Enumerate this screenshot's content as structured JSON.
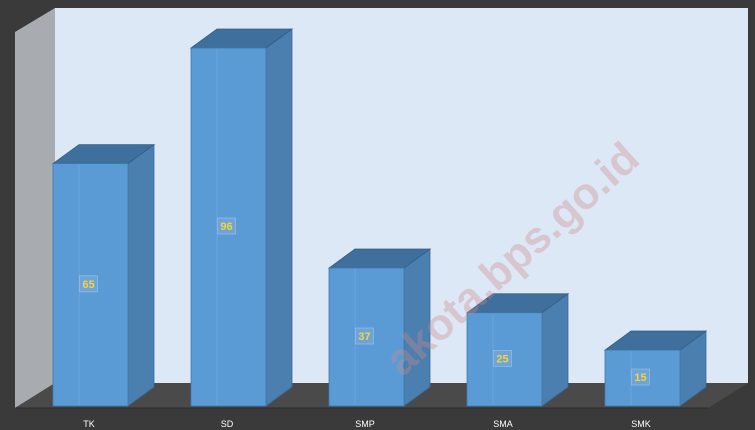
{
  "watermark": "akota.bps.go.id",
  "colors": {
    "frame": "#3a3a3a",
    "back_wall": "#dde8f6",
    "side_wall": "#a8acb1",
    "floor": "#4a4a4a",
    "bar_front": "#5b9bd5",
    "bar_side": "#4a7fb0",
    "bar_top": "#3f6f9c",
    "label_text": "#f6d23c"
  },
  "chart_data": {
    "type": "bar",
    "style": "3d-column",
    "categories": [
      "TK",
      "SD",
      "SMP",
      "SMA",
      "SMK"
    ],
    "values": [
      65,
      96,
      37,
      25,
      15
    ],
    "title": "",
    "xlabel": "",
    "ylabel": "",
    "ylim": [
      0,
      100
    ],
    "grid": false,
    "data_labels": true
  }
}
